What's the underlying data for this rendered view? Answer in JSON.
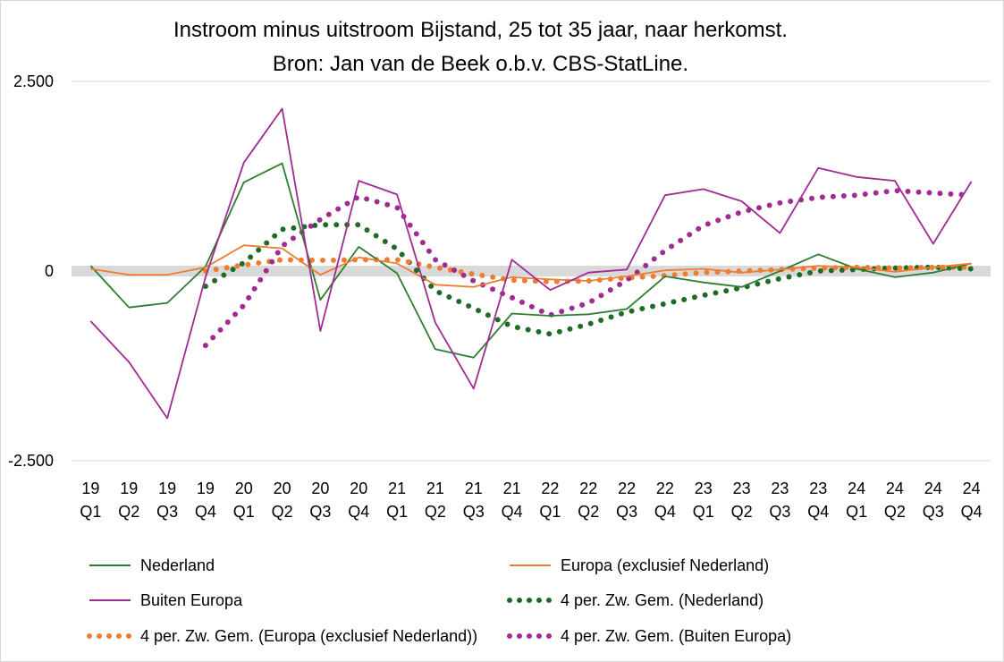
{
  "chart_data": {
    "type": "line",
    "title": "Instroom minus uitstroom Bijstand, 25 tot 35 jaar, naar herkomst.",
    "subtitle": "Bron: Jan van de Beek o.b.v. CBS-StatLine.",
    "ylim": [
      -2500,
      2500
    ],
    "yticks": [
      "2.500",
      "0",
      "-2.500"
    ],
    "ytick_values": [
      2500,
      0,
      -2500
    ],
    "grid": true,
    "legend_position": "bottom",
    "categories": [
      [
        "19",
        "Q1"
      ],
      [
        "19",
        "Q2"
      ],
      [
        "19",
        "Q3"
      ],
      [
        "19",
        "Q4"
      ],
      [
        "20",
        "Q1"
      ],
      [
        "20",
        "Q2"
      ],
      [
        "20",
        "Q3"
      ],
      [
        "20",
        "Q4"
      ],
      [
        "21",
        "Q1"
      ],
      [
        "21",
        "Q2"
      ],
      [
        "21",
        "Q3"
      ],
      [
        "21",
        "Q4"
      ],
      [
        "22",
        "Q1"
      ],
      [
        "22",
        "Q2"
      ],
      [
        "22",
        "Q3"
      ],
      [
        "22",
        "Q4"
      ],
      [
        "23",
        "Q1"
      ],
      [
        "23",
        "Q2"
      ],
      [
        "23",
        "Q3"
      ],
      [
        "23",
        "Q4"
      ],
      [
        "24",
        "Q1"
      ],
      [
        "24",
        "Q2"
      ],
      [
        "24",
        "Q3"
      ],
      [
        "24",
        "Q4"
      ]
    ],
    "series": [
      {
        "name": "Nederland",
        "color": "#2e7d32",
        "style": "solid",
        "values": [
          70,
          -480,
          -420,
          60,
          1170,
          1420,
          -380,
          320,
          -30,
          -1030,
          -1140,
          -560,
          -590,
          -570,
          -500,
          -70,
          -150,
          -210,
          0,
          220,
          30,
          -80,
          -20,
          100
        ]
      },
      {
        "name": "Europa (exclusief Nederland)",
        "color": "#ed7d31",
        "style": "solid",
        "values": [
          30,
          -50,
          -50,
          50,
          340,
          300,
          -50,
          180,
          100,
          -180,
          -210,
          -80,
          -110,
          -130,
          -70,
          10,
          30,
          -20,
          20,
          70,
          50,
          -10,
          50,
          100
        ]
      },
      {
        "name": "Buiten Europa",
        "color": "#a02b93",
        "style": "solid",
        "values": [
          -660,
          -1200,
          -1940,
          -80,
          1430,
          2140,
          -790,
          1190,
          1010,
          -680,
          -1550,
          150,
          -250,
          -20,
          20,
          1000,
          1080,
          920,
          500,
          1360,
          1240,
          1190,
          360,
          1180
        ]
      },
      {
        "name": "4 per. Zw. Gem. (Nederland)",
        "color": "#1e6b24",
        "style": "dotted",
        "values": [
          null,
          null,
          null,
          -200,
          110,
          550,
          610,
          610,
          290,
          -260,
          -490,
          -730,
          -830,
          -700,
          -540,
          -430,
          -320,
          -220,
          -100,
          0,
          20,
          40,
          50,
          30
        ]
      },
      {
        "name": "4 per. Zw. Gem. (Europa (exclusief Nederland))",
        "color": "#ed7d31",
        "style": "dotted",
        "values": [
          null,
          null,
          null,
          0,
          80,
          150,
          140,
          150,
          150,
          50,
          -40,
          -120,
          -140,
          -130,
          -90,
          -60,
          -20,
          0,
          20,
          40,
          50,
          40,
          50,
          50
        ]
      },
      {
        "name": "4 per. Zw. Gem. (Buiten Europa)",
        "color": "#a02b93",
        "style": "dotted",
        "values": [
          null,
          null,
          null,
          -980,
          -450,
          330,
          680,
          980,
          840,
          150,
          -130,
          -350,
          -580,
          -420,
          -120,
          270,
          600,
          780,
          900,
          970,
          1000,
          1060,
          1030,
          1000
        ]
      }
    ]
  }
}
